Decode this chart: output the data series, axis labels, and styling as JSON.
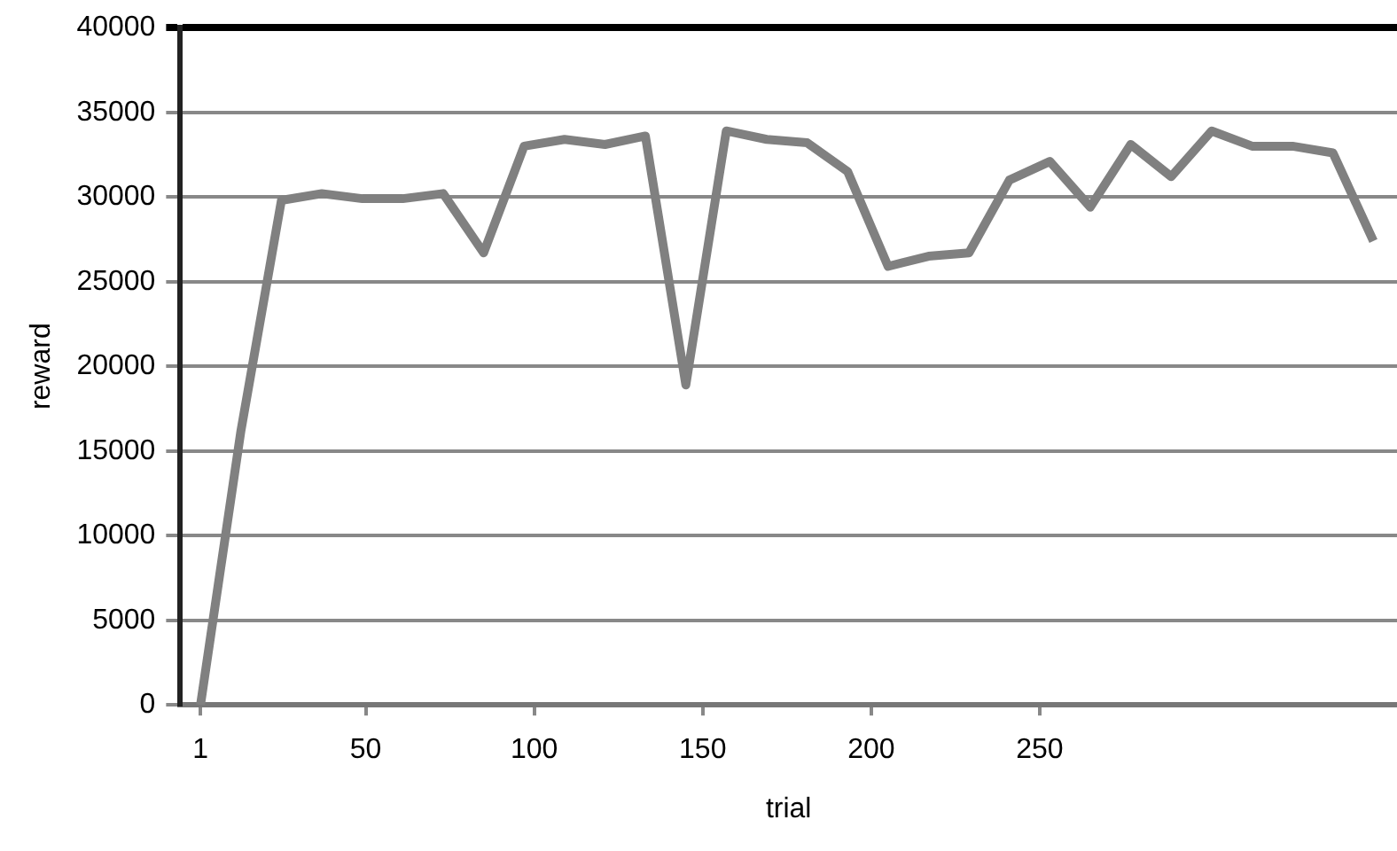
{
  "chart_data": {
    "type": "line",
    "xlabel": "trial",
    "ylabel": "reward",
    "x": [
      1,
      13,
      25,
      37,
      49,
      61,
      73,
      85,
      97,
      109,
      121,
      133,
      145,
      157,
      169,
      181,
      193,
      205,
      217,
      229,
      241,
      253,
      265,
      277,
      289,
      301,
      313,
      325,
      337,
      349
    ],
    "series": [
      {
        "color": "#808080",
        "values": [
          0,
          16200,
          29800,
          30200,
          29900,
          29900,
          30200,
          26700,
          33000,
          33400,
          33100,
          33600,
          18900,
          33900,
          33400,
          33200,
          31500,
          25900,
          26500,
          26700,
          31000,
          32100,
          29400,
          33100,
          31200,
          33900,
          33000,
          33000,
          32600,
          27400
        ]
      }
    ],
    "xlim": [
      -5,
      356
    ],
    "xticks": [
      1,
      50,
      100,
      150,
      200,
      250
    ],
    "ylim": [
      0,
      40000
    ],
    "yticks": [
      0,
      5000,
      10000,
      15000,
      20000,
      25000,
      30000,
      35000,
      40000
    ],
    "grid": "y",
    "legend": false,
    "marker": "none",
    "line_style": "solid"
  }
}
